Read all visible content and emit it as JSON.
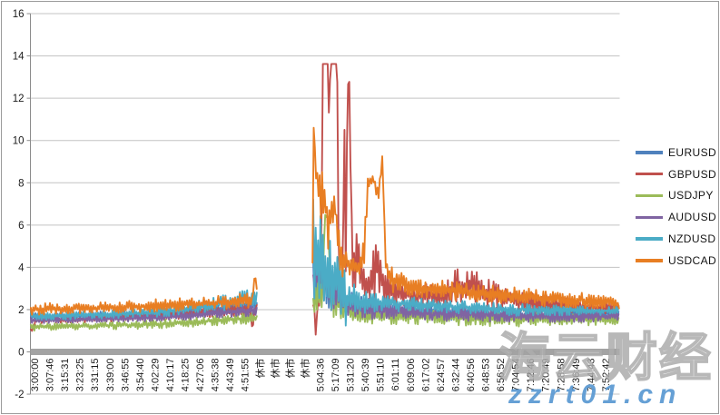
{
  "watermarks": {
    "brand_cn": "海云财经",
    "brand_url": "zzrt01.cn"
  },
  "chart_data": {
    "type": "line",
    "title": "",
    "xlabel": "",
    "ylabel": "",
    "ylim": [
      -2,
      16
    ],
    "yticks": [
      16,
      14,
      12,
      10,
      8,
      6,
      4,
      2,
      0,
      -2
    ],
    "grid": true,
    "legend_position": "right",
    "closed_market_label": "休市",
    "categories": [
      "3:00:00",
      "3:07:46",
      "3:15:31",
      "3:23:25",
      "3:31:15",
      "3:39:00",
      "3:46:55",
      "3:54:40",
      "4:02:29",
      "4:10:17",
      "4:18:25",
      "4:27:06",
      "4:35:38",
      "4:43:49",
      "4:51:55",
      "休市",
      "休市",
      "休市",
      "休市",
      "5:04:36",
      "5:17:09",
      "5:31:20",
      "5:40:39",
      "5:51:10",
      "6:01:11",
      "6:09:06",
      "6:17:02",
      "6:24:57",
      "6:32:44",
      "6:40:56",
      "6:48:53",
      "6:56:52",
      "7:04:54",
      "7:12:46",
      "7:20:49",
      "7:28:58",
      "7:36:49",
      "7:44:43",
      "7:52:42"
    ],
    "series_format": "segments of [category_index, low, high] envelopes of the noisy spread line; gap between segments = market closed (休市)",
    "series": [
      {
        "name": "EURUSD",
        "color": "#4F81BD",
        "seed": 11,
        "segments": [
          [
            [
              -0.25,
              1.5,
              1.85
            ],
            [
              4,
              1.55,
              1.9
            ],
            [
              8,
              1.6,
              2.0
            ],
            [
              10,
              1.65,
              2.1
            ],
            [
              12,
              1.75,
              2.3
            ],
            [
              13.5,
              1.8,
              2.5
            ],
            [
              14.8,
              1.9,
              2.6
            ]
          ],
          [
            [
              18.55,
              2.0,
              4.6
            ],
            [
              19.0,
              2.0,
              4.8
            ],
            [
              19.4,
              1.9,
              4.2
            ],
            [
              20.0,
              1.8,
              3.6
            ],
            [
              20.6,
              1.7,
              3.0
            ],
            [
              21.4,
              1.6,
              2.7
            ],
            [
              22.5,
              1.55,
              2.5
            ],
            [
              24,
              1.6,
              2.4
            ],
            [
              26,
              1.55,
              2.3
            ],
            [
              28,
              1.5,
              2.2
            ],
            [
              31,
              1.5,
              2.1
            ],
            [
              34,
              1.5,
              2.05
            ],
            [
              37,
              1.55,
              2.1
            ],
            [
              38.9,
              1.6,
              2.05
            ]
          ]
        ]
      },
      {
        "name": "GBPUSD",
        "color": "#C0504D",
        "seed": 22,
        "segments": [
          [
            [
              -0.25,
              0.85,
              1.1
            ],
            [
              0.1,
              1.35,
              1.7
            ],
            [
              4,
              1.4,
              1.75
            ],
            [
              8,
              1.5,
              1.9
            ],
            [
              10,
              1.55,
              2.0
            ],
            [
              12,
              1.65,
              2.15
            ],
            [
              13.5,
              1.7,
              2.3
            ],
            [
              14.35,
              1.75,
              2.35
            ],
            [
              14.5,
              1.0,
              1.0
            ],
            [
              14.65,
              1.75,
              2.3
            ],
            [
              14.8,
              1.8,
              2.3
            ]
          ],
          [
            [
              18.55,
              1.9,
              2.3
            ],
            [
              18.68,
              1.9,
              2.2
            ],
            [
              18.74,
              -0.45,
              -0.45
            ],
            [
              18.8,
              1.9,
              2.4
            ],
            [
              19.0,
              2.2,
              3.4
            ],
            [
              19.08,
              2.6,
              3.2
            ],
            [
              19.16,
              13.62,
              13.62
            ],
            [
              19.52,
              13.62,
              13.62
            ],
            [
              19.6,
              10.5,
              11.6
            ],
            [
              19.7,
              13.62,
              13.62
            ],
            [
              20.14,
              13.62,
              13.62
            ],
            [
              20.26,
              2.8,
              3.6
            ],
            [
              20.5,
              2.7,
              3.5
            ],
            [
              20.62,
              10.8,
              11.4
            ],
            [
              20.72,
              3.0,
              3.0
            ],
            [
              20.82,
              12.78,
              12.78
            ],
            [
              20.95,
              12.3,
              12.8
            ],
            [
              21.05,
              7.6,
              8.4
            ],
            [
              21.18,
              2.9,
              4.6
            ],
            [
              21.5,
              2.6,
              6.0
            ],
            [
              21.8,
              2.5,
              4.2
            ],
            [
              22.3,
              2.4,
              3.6
            ],
            [
              22.75,
              2.5,
              5.9
            ],
            [
              23.05,
              2.4,
              4.6
            ],
            [
              23.5,
              2.3,
              3.9
            ],
            [
              24.3,
              2.2,
              3.4
            ],
            [
              25.5,
              2.1,
              3.2
            ],
            [
              27,
              2.05,
              3.3
            ],
            [
              28.3,
              2.1,
              4.1
            ],
            [
              29.3,
              2.1,
              3.9
            ],
            [
              30.5,
              2.0,
              3.4
            ],
            [
              32,
              1.95,
              2.9
            ],
            [
              34,
              1.85,
              2.7
            ],
            [
              36,
              1.8,
              2.5
            ],
            [
              38.9,
              1.8,
              2.3
            ]
          ]
        ]
      },
      {
        "name": "USDJPY",
        "color": "#9BBB59",
        "seed": 33,
        "segments": [
          [
            [
              -0.25,
              1.0,
              1.35
            ],
            [
              4,
              1.05,
              1.4
            ],
            [
              8,
              1.1,
              1.5
            ],
            [
              10,
              1.15,
              1.6
            ],
            [
              12,
              1.25,
              1.7
            ],
            [
              13.5,
              1.3,
              1.8
            ],
            [
              14.8,
              1.35,
              1.9
            ]
          ],
          [
            [
              18.55,
              1.5,
              2.8
            ],
            [
              18.9,
              1.5,
              3.8
            ],
            [
              19.2,
              1.6,
              4.4
            ],
            [
              19.3,
              6.35,
              6.5
            ],
            [
              19.55,
              6.35,
              6.45
            ],
            [
              19.65,
              1.7,
              4.6
            ],
            [
              20.0,
              1.5,
              3.4
            ],
            [
              20.5,
              1.4,
              2.7
            ],
            [
              21.3,
              1.35,
              2.3
            ],
            [
              22.5,
              1.3,
              2.1
            ],
            [
              24,
              1.3,
              2.05
            ],
            [
              26,
              1.3,
              2.0
            ],
            [
              28,
              1.25,
              1.95
            ],
            [
              31,
              1.2,
              1.9
            ],
            [
              34,
              1.2,
              1.85
            ],
            [
              37,
              1.25,
              1.8
            ],
            [
              38.9,
              1.3,
              1.75
            ]
          ]
        ]
      },
      {
        "name": "AUDUSD",
        "color": "#8064A2",
        "seed": 44,
        "segments": [
          [
            [
              -0.25,
              1.35,
              1.65
            ],
            [
              4,
              1.4,
              1.7
            ],
            [
              8,
              1.45,
              1.8
            ],
            [
              10,
              1.5,
              1.9
            ],
            [
              12,
              1.6,
              2.05
            ],
            [
              13.5,
              1.65,
              2.2
            ],
            [
              14.8,
              1.7,
              2.25
            ]
          ],
          [
            [
              18.55,
              1.9,
              4.4
            ],
            [
              18.85,
              2.1,
              5.6
            ],
            [
              19.1,
              2.0,
              5.0
            ],
            [
              19.5,
              1.9,
              4.5
            ],
            [
              20.0,
              1.8,
              4.1
            ],
            [
              20.6,
              1.7,
              3.3
            ],
            [
              21.3,
              1.6,
              2.9
            ],
            [
              22.3,
              1.55,
              2.5
            ],
            [
              24,
              1.5,
              2.3
            ],
            [
              26.5,
              1.45,
              2.15
            ],
            [
              29,
              1.45,
              2.1
            ],
            [
              32,
              1.4,
              2.0
            ],
            [
              35,
              1.4,
              1.95
            ],
            [
              38.9,
              1.45,
              1.9
            ]
          ]
        ]
      },
      {
        "name": "NZDUSD",
        "color": "#4BACC6",
        "seed": 55,
        "segments": [
          [
            [
              -0.25,
              1.5,
              1.9
            ],
            [
              4,
              1.55,
              1.95
            ],
            [
              8,
              1.65,
              2.1
            ],
            [
              10,
              1.75,
              2.3
            ],
            [
              12,
              1.9,
              2.6
            ],
            [
              13.5,
              2.0,
              2.85
            ],
            [
              14.6,
              2.05,
              3.0
            ],
            [
              14.8,
              2.1,
              3.3
            ]
          ],
          [
            [
              18.55,
              2.4,
              7.6
            ],
            [
              18.9,
              2.4,
              7.0
            ],
            [
              19.3,
              2.2,
              6.2
            ],
            [
              19.8,
              2.0,
              5.4
            ],
            [
              20.3,
              1.9,
              4.6
            ],
            [
              20.6,
              1.2,
              4.0
            ],
            [
              20.75,
              0.9,
              3.6
            ],
            [
              21.0,
              1.7,
              3.4
            ],
            [
              21.6,
              1.8,
              3.0
            ],
            [
              22.4,
              1.85,
              2.8
            ],
            [
              23.5,
              1.9,
              2.7
            ],
            [
              25,
              1.9,
              2.6
            ],
            [
              27,
              1.85,
              2.5
            ],
            [
              29,
              1.8,
              2.4
            ],
            [
              31.5,
              1.7,
              2.3
            ],
            [
              34,
              1.7,
              2.25
            ],
            [
              36.5,
              1.7,
              2.2
            ],
            [
              38.9,
              1.75,
              2.15
            ]
          ]
        ]
      },
      {
        "name": "USDCAD",
        "color": "#E87E23",
        "seed": 66,
        "segments": [
          [
            [
              -0.25,
              1.75,
              2.3
            ],
            [
              4,
              1.8,
              2.35
            ],
            [
              8,
              1.9,
              2.5
            ],
            [
              10,
              1.95,
              2.55
            ],
            [
              12,
              2.0,
              2.65
            ],
            [
              13.5,
              2.05,
              2.75
            ],
            [
              14.5,
              2.1,
              2.8
            ],
            [
              14.68,
              3.8,
              3.8
            ],
            [
              14.8,
              2.5,
              3.0
            ]
          ],
          [
            [
              18.5,
              4.0,
              4.3
            ],
            [
              18.58,
              10.6,
              10.6
            ],
            [
              18.68,
              8.2,
              9.6
            ],
            [
              18.85,
              6.6,
              9.4
            ],
            [
              19.1,
              6.2,
              9.0
            ],
            [
              19.35,
              6.4,
              8.6
            ],
            [
              19.55,
              4.4,
              7.2
            ],
            [
              19.75,
              5.6,
              8.2
            ],
            [
              20.05,
              5.8,
              7.6
            ],
            [
              20.22,
              4.6,
              6.2
            ],
            [
              20.35,
              3.4,
              5.2
            ],
            [
              20.7,
              3.6,
              4.9
            ],
            [
              21.2,
              3.5,
              4.7
            ],
            [
              21.8,
              3.6,
              4.6
            ],
            [
              22.0,
              4.2,
              6.4
            ],
            [
              22.18,
              7.8,
              8.3
            ],
            [
              22.55,
              7.9,
              8.35
            ],
            [
              22.85,
              6.9,
              8.2
            ],
            [
              23.02,
              7.9,
              8.3
            ],
            [
              23.15,
              9.35,
              9.35
            ],
            [
              23.28,
              5.9,
              6.4
            ],
            [
              23.4,
              3.2,
              4.3
            ],
            [
              23.8,
              2.8,
              4.0
            ],
            [
              24.5,
              2.7,
              3.7
            ],
            [
              25.5,
              2.6,
              3.5
            ],
            [
              27,
              2.5,
              3.4
            ],
            [
              28.5,
              2.4,
              3.3
            ],
            [
              30,
              2.35,
              3.2
            ],
            [
              32,
              2.25,
              3.05
            ],
            [
              34,
              2.15,
              2.95
            ],
            [
              36,
              2.1,
              2.85
            ],
            [
              38,
              2.0,
              2.7
            ],
            [
              38.9,
              2.0,
              2.4
            ]
          ]
        ]
      }
    ]
  }
}
